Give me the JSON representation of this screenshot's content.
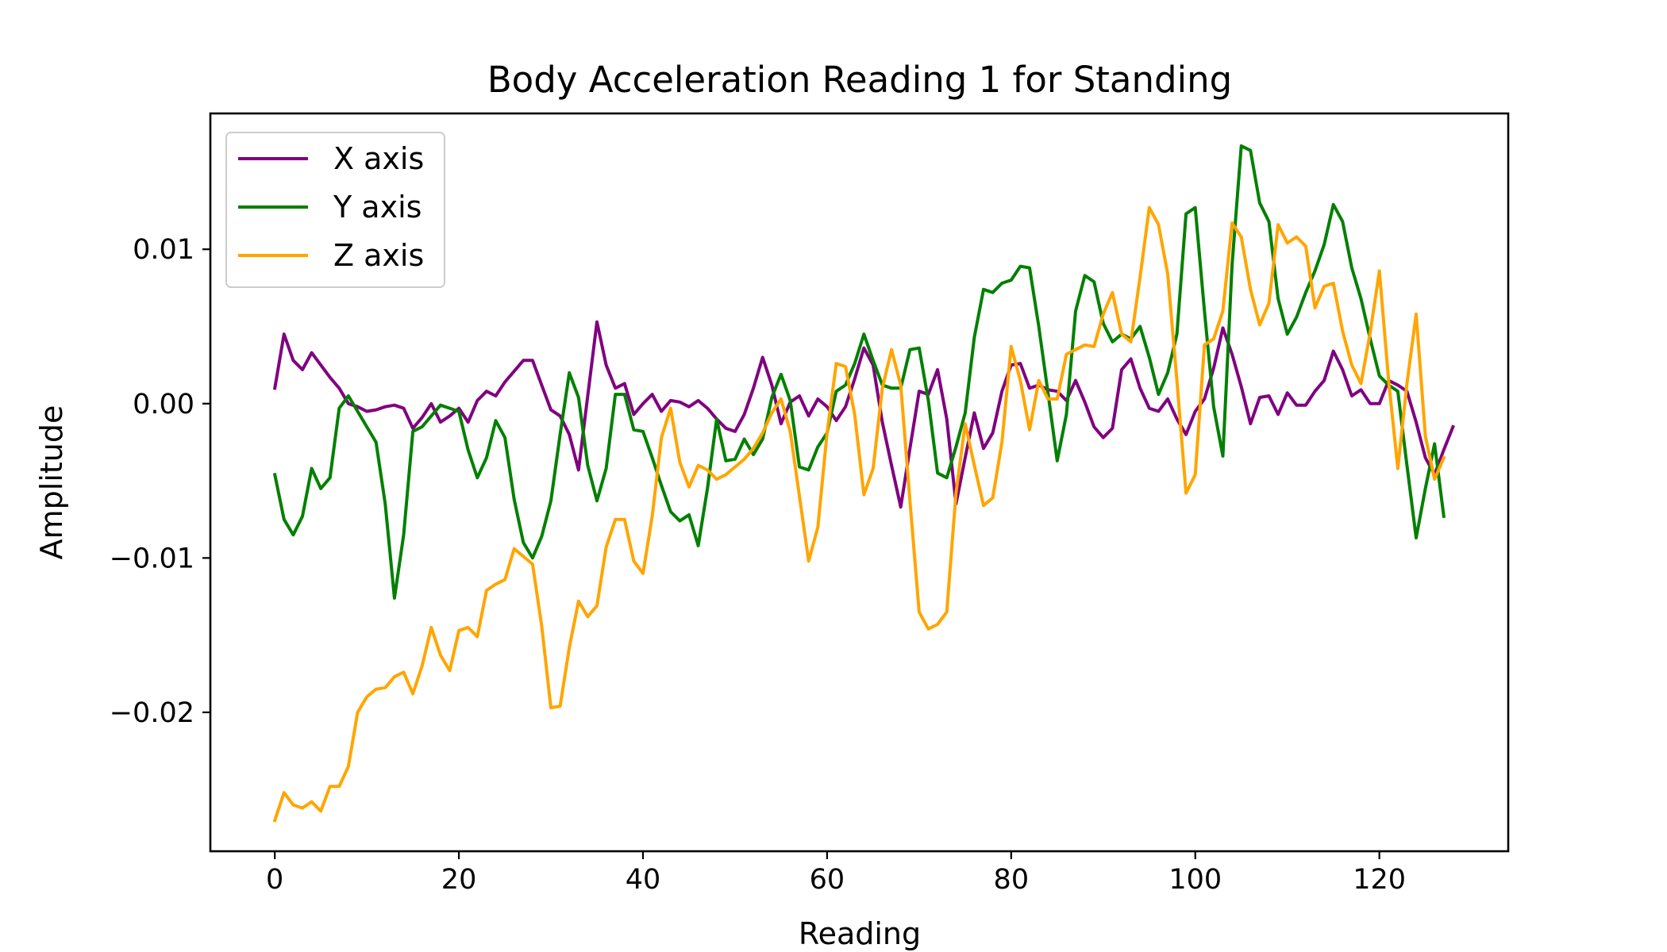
{
  "chart_data": {
    "type": "line",
    "title": "Body Acceleration Reading 1 for Standing",
    "xlabel": "Reading",
    "ylabel": "Amplitude",
    "xlim": [
      -7,
      134
    ],
    "ylim": [
      -0.029,
      0.0188
    ],
    "xticks": [
      0,
      20,
      40,
      60,
      80,
      100,
      120
    ],
    "xtick_labels": [
      "0",
      "20",
      "40",
      "60",
      "80",
      "100",
      "120"
    ],
    "yticks": [
      -0.02,
      -0.01,
      0.0,
      0.01
    ],
    "ytick_labels": [
      "−0.02",
      "−0.01",
      "0.00",
      "0.01"
    ],
    "grid": false,
    "legend_position": "top-left",
    "series": [
      {
        "name": "X axis",
        "color": "#800080",
        "x_start": 0,
        "values": [
          0.001,
          0.0045,
          0.0028,
          0.0022,
          0.0033,
          0.0025,
          0.0017,
          0.001,
          0.0,
          -0.0002,
          -0.0005,
          -0.0004,
          -0.0002,
          -0.0001,
          -0.0003,
          -0.0016,
          -0.0009,
          0.0,
          -0.0012,
          -0.0008,
          -0.0003,
          -0.0012,
          0.0002,
          0.0008,
          0.0005,
          0.0014,
          0.0021,
          0.0028,
          0.0028,
          0.0012,
          -0.0004,
          -0.0008,
          -0.002,
          -0.0043,
          0.0005,
          0.0053,
          0.0025,
          0.001,
          0.0013,
          -0.0007,
          0.0,
          0.0006,
          -0.0005,
          0.0002,
          0.0001,
          -0.0002,
          0.0002,
          -0.0003,
          -0.001,
          -0.0016,
          -0.0018,
          -0.0007,
          0.001,
          0.003,
          0.0012,
          -0.0013,
          0.0001,
          0.0005,
          -0.0008,
          0.0003,
          -0.0002,
          -0.0011,
          -0.0002,
          0.0016,
          0.0036,
          0.0025,
          -0.0012,
          -0.004,
          -0.0067,
          -0.0029,
          0.0008,
          0.0006,
          0.0022,
          -0.001,
          -0.0065,
          -0.0035,
          -0.0006,
          -0.0029,
          -0.0019,
          0.0008,
          0.0025,
          0.0026,
          0.001,
          0.0012,
          0.0009,
          0.0008,
          0.0002,
          0.0015,
          0.0001,
          -0.0015,
          -0.0022,
          -0.0016,
          0.0022,
          0.0029,
          0.001,
          -0.0003,
          -0.0005,
          0.0003,
          -0.001,
          -0.002,
          -0.0005,
          0.0003,
          0.0023,
          0.0049,
          0.0032,
          0.0011,
          -0.0013,
          0.0004,
          0.0005,
          -0.0007,
          0.0007,
          -0.0001,
          -0.0001,
          0.0008,
          0.0015,
          0.0034,
          0.0022,
          0.0005,
          0.0009,
          0.0,
          0.0,
          0.0015,
          0.0012,
          0.0008,
          -0.0012,
          -0.0035,
          -0.0046,
          -0.003,
          -0.0015
        ]
      },
      {
        "name": "Y axis",
        "color": "#008000",
        "x_start": 0,
        "values": [
          -0.0046,
          -0.0075,
          -0.0085,
          -0.0073,
          -0.0042,
          -0.0055,
          -0.0048,
          -0.0003,
          0.0005,
          -0.0005,
          -0.0015,
          -0.0025,
          -0.0065,
          -0.0126,
          -0.0085,
          -0.0018,
          -0.0015,
          -0.0008,
          -0.0001,
          -0.0003,
          -0.0005,
          -0.003,
          -0.0048,
          -0.0035,
          -0.0011,
          -0.0022,
          -0.0062,
          -0.009,
          -0.01,
          -0.0086,
          -0.0063,
          -0.002,
          0.002,
          0.0004,
          -0.004,
          -0.0063,
          -0.0042,
          0.0006,
          0.0006,
          -0.0017,
          -0.0018,
          -0.0035,
          -0.0053,
          -0.007,
          -0.0076,
          -0.0072,
          -0.0092,
          -0.0055,
          -0.001,
          -0.0037,
          -0.0036,
          -0.0023,
          -0.0033,
          -0.0023,
          0.0004,
          0.0019,
          0.0002,
          -0.0041,
          -0.0043,
          -0.0028,
          -0.0019,
          0.0008,
          0.0012,
          0.0026,
          0.0045,
          0.0028,
          0.0012,
          0.001,
          0.001,
          0.0035,
          0.0036,
          0.0002,
          -0.0045,
          -0.0048,
          -0.0028,
          -0.0006,
          0.0043,
          0.0074,
          0.0072,
          0.0078,
          0.008,
          0.0089,
          0.0088,
          0.005,
          0.0007,
          -0.0037,
          -0.0007,
          0.006,
          0.0083,
          0.0079,
          0.0052,
          0.004,
          0.0045,
          0.0042,
          0.005,
          0.003,
          0.0006,
          0.002,
          0.0045,
          0.0123,
          0.0127,
          0.006,
          -0.0002,
          -0.0034,
          0.009,
          0.0167,
          0.0164,
          0.013,
          0.0118,
          0.0068,
          0.0045,
          0.0056,
          0.0072,
          0.0086,
          0.0103,
          0.0129,
          0.0118,
          0.0088,
          0.0068,
          0.0042,
          0.0018,
          0.0012,
          0.0008,
          -0.004,
          -0.0087,
          -0.0055,
          -0.0026,
          -0.0073
        ]
      },
      {
        "name": "Z axis",
        "color": "#FFA500",
        "x_start": 0,
        "values": [
          -0.027,
          -0.0252,
          -0.026,
          -0.0262,
          -0.0258,
          -0.0264,
          -0.0248,
          -0.0248,
          -0.0235,
          -0.02,
          -0.019,
          -0.0185,
          -0.0184,
          -0.0177,
          -0.0174,
          -0.0188,
          -0.017,
          -0.0145,
          -0.0163,
          -0.0173,
          -0.0147,
          -0.0145,
          -0.0151,
          -0.0121,
          -0.0117,
          -0.0114,
          -0.0094,
          -0.0099,
          -0.0104,
          -0.0144,
          -0.0197,
          -0.0196,
          -0.0158,
          -0.0128,
          -0.0138,
          -0.0131,
          -0.0093,
          -0.0075,
          -0.0075,
          -0.0102,
          -0.011,
          -0.0073,
          -0.0022,
          -0.0003,
          -0.0038,
          -0.0054,
          -0.004,
          -0.0043,
          -0.0049,
          -0.0046,
          -0.0041,
          -0.0036,
          -0.0029,
          -0.0019,
          -0.0006,
          0.0003,
          -0.0018,
          -0.006,
          -0.0102,
          -0.008,
          -0.0019,
          0.0026,
          0.0024,
          -0.0007,
          -0.0059,
          -0.0042,
          0.001,
          0.0035,
          0.0012,
          -0.0063,
          -0.0135,
          -0.0146,
          -0.0143,
          -0.0135,
          -0.0058,
          -0.0013,
          -0.004,
          -0.0066,
          -0.0061,
          -0.0025,
          0.0037,
          0.0015,
          -0.0017,
          0.0015,
          0.0003,
          0.0003,
          0.0032,
          0.0035,
          0.0038,
          0.0037,
          0.0058,
          0.0072,
          0.0045,
          0.004,
          0.0082,
          0.0127,
          0.0116,
          0.0084,
          0.0015,
          -0.0058,
          -0.0046,
          0.0038,
          0.0042,
          0.006,
          0.0117,
          0.0108,
          0.0074,
          0.0051,
          0.0065,
          0.0116,
          0.0104,
          0.0108,
          0.0102,
          0.0062,
          0.0076,
          0.0078,
          0.0047,
          0.0025,
          0.0013,
          0.0046,
          0.0086,
          0.0015,
          -0.0042,
          0.0013,
          0.0058,
          -0.0021,
          -0.0049,
          -0.0035
        ]
      }
    ]
  }
}
